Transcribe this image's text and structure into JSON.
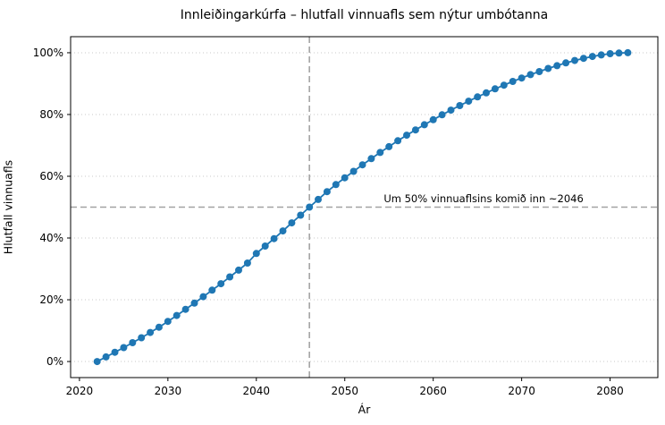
{
  "page": {
    "background": "#ffffff"
  },
  "chart_data": {
    "type": "line",
    "title": "Innleiðingarkúrfa – hlutfall vinnuafls sem nýtur umbótanna",
    "xlabel": "Ár",
    "ylabel": "Hlutfall vinnuafls",
    "xlim": [
      2019.0,
      2085.4
    ],
    "ylim": [
      -5.2,
      105.2
    ],
    "x_ticks": [
      2020,
      2030,
      2040,
      2050,
      2060,
      2070,
      2080
    ],
    "x_tick_labels": [
      "2020",
      "2030",
      "2040",
      "2050",
      "2060",
      "2070",
      "2080"
    ],
    "y_ticks": [
      0,
      20,
      40,
      60,
      80,
      100
    ],
    "y_tick_labels": [
      "0%",
      "20%",
      "40%",
      "60%",
      "80%",
      "100%"
    ],
    "grid": "horizontal-dotted",
    "grid_color": "#c8c8c8",
    "legend": "none",
    "series": [
      {
        "name": "Hlutfall vinnuafls sem nýtur umbótanna",
        "color": "#1f77b4",
        "marker": "circle",
        "marker_radius": 4,
        "x": [
          2022,
          2023,
          2024,
          2025,
          2026,
          2027,
          2028,
          2029,
          2030,
          2031,
          2032,
          2033,
          2034,
          2035,
          2036,
          2037,
          2038,
          2039,
          2040,
          2041,
          2042,
          2043,
          2044,
          2045,
          2046,
          2047,
          2048,
          2049,
          2050,
          2051,
          2052,
          2053,
          2054,
          2055,
          2056,
          2057,
          2058,
          2059,
          2060,
          2061,
          2062,
          2063,
          2064,
          2065,
          2066,
          2067,
          2068,
          2069,
          2070,
          2071,
          2072,
          2073,
          2074,
          2075,
          2076,
          2077,
          2078,
          2079,
          2080,
          2081,
          2082
        ],
        "y": [
          0.0,
          1.5,
          3.0,
          4.5,
          6.1,
          7.7,
          9.4,
          11.1,
          13.0,
          14.9,
          16.9,
          18.9,
          21.0,
          23.1,
          25.2,
          27.4,
          29.6,
          31.9,
          35.0,
          37.4,
          39.8,
          42.3,
          44.9,
          47.4,
          50.0,
          52.5,
          55.0,
          57.3,
          59.5,
          61.6,
          63.7,
          65.7,
          67.7,
          69.6,
          71.5,
          73.3,
          75.0,
          76.7,
          78.3,
          79.9,
          81.4,
          82.9,
          84.3,
          85.7,
          87.0,
          88.3,
          89.5,
          90.7,
          91.8,
          92.9,
          93.9,
          94.9,
          95.8,
          96.7,
          97.5,
          98.2,
          98.8,
          99.3,
          99.7,
          99.9,
          100.0
        ]
      }
    ],
    "reference_lines": {
      "horizontal_50pct": {
        "y": 50,
        "style": "dashed",
        "color": "#a3a3a3"
      },
      "vertical_2046": {
        "x": 2046,
        "style": "dashed",
        "color": "#a3a3a3"
      }
    },
    "annotation": {
      "text": "Um 50% vinnuaflsins komið inn ~2046",
      "x": 2065.7,
      "y": 50,
      "dy": -5.5
    },
    "axis_color": "#000000",
    "tick_label_color": "#000000"
  }
}
